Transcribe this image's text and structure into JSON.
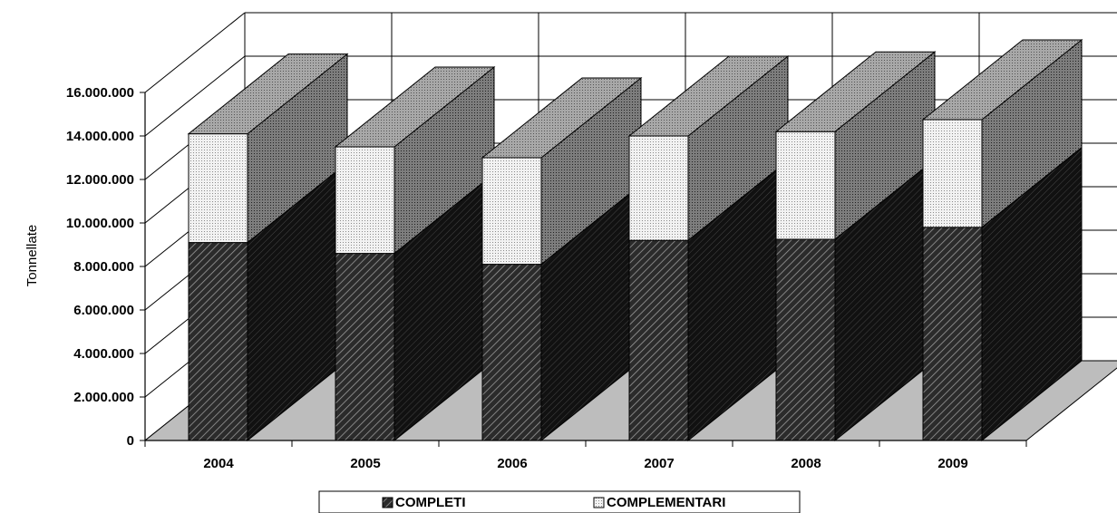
{
  "chart_data": {
    "type": "bar",
    "stacked": true,
    "three_d": true,
    "categories": [
      "2004",
      "2005",
      "2006",
      "2007",
      "2008",
      "2009"
    ],
    "series": [
      {
        "name": "COMPLETI",
        "values": [
          9100000,
          8600000,
          8100000,
          9200000,
          9250000,
          9800000
        ]
      },
      {
        "name": "COMPLEMENTARI",
        "values": [
          5000000,
          4900000,
          4900000,
          4800000,
          4950000,
          4950000
        ]
      }
    ],
    "ylabel": "Tonnellate",
    "xlabel": "",
    "ylim": [
      0,
      16000000
    ],
    "yticks": [
      "0",
      "2.000.000",
      "4.000.000",
      "6.000.000",
      "8.000.000",
      "10.000.000",
      "12.000.000",
      "14.000.000",
      "16.000.000"
    ],
    "grid": true,
    "legend_position": "bottom"
  },
  "colors": {
    "floor": "#bdbdbd",
    "completi_front": "#444444",
    "completi_side": "#1a1a1a",
    "complementari_front": "#e6e6e6",
    "complementari_side": "#7a7a7a",
    "top": "#9c9c9c"
  }
}
